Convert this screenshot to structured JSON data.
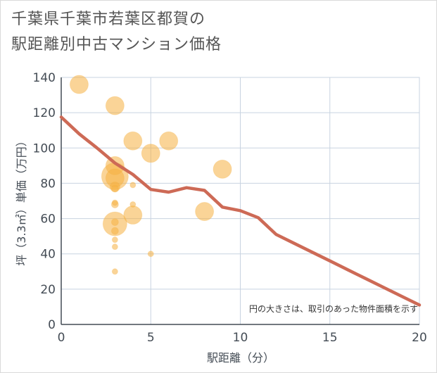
{
  "title_line1": "千葉県千葉市若葉区都賀の",
  "title_line2": "駅距離別中古マンション価格",
  "chart_data": {
    "type": "scatter",
    "xlabel": "駅距離（分）",
    "ylabel": "坪（3.3㎡）単価（万円）",
    "xlim": [
      0,
      20
    ],
    "ylim": [
      0,
      140
    ],
    "xticks": [
      0,
      5,
      10,
      15,
      20
    ],
    "yticks": [
      0,
      20,
      40,
      60,
      80,
      100,
      120,
      140
    ],
    "grid": true,
    "note": "円の大きさは、取引のあった物件面積を示す",
    "colors": {
      "bubble": "#f5b041",
      "line": "#cd6a56",
      "grid": "#c8d3e0",
      "axis": "#444c55"
    },
    "bubbles": [
      {
        "x": 1,
        "y": 136,
        "size": 13
      },
      {
        "x": 3,
        "y": 124,
        "size": 13
      },
      {
        "x": 3,
        "y": 90,
        "size": 13
      },
      {
        "x": 3,
        "y": 84,
        "size": 19
      },
      {
        "x": 3,
        "y": 83,
        "size": 13
      },
      {
        "x": 3,
        "y": 78,
        "size": 7
      },
      {
        "x": 3,
        "y": 77,
        "size": 5
      },
      {
        "x": 3,
        "y": 69,
        "size": 4
      },
      {
        "x": 3,
        "y": 68,
        "size": 5
      },
      {
        "x": 3,
        "y": 58,
        "size": 5
      },
      {
        "x": 3,
        "y": 57,
        "size": 17
      },
      {
        "x": 3,
        "y": 53,
        "size": 5
      },
      {
        "x": 3,
        "y": 48,
        "size": 4
      },
      {
        "x": 3,
        "y": 44,
        "size": 4
      },
      {
        "x": 3,
        "y": 30,
        "size": 4
      },
      {
        "x": 4,
        "y": 104,
        "size": 13
      },
      {
        "x": 4,
        "y": 79,
        "size": 4
      },
      {
        "x": 4,
        "y": 68,
        "size": 4
      },
      {
        "x": 4,
        "y": 62,
        "size": 13
      },
      {
        "x": 5,
        "y": 97,
        "size": 13
      },
      {
        "x": 5,
        "y": 40,
        "size": 4
      },
      {
        "x": 6,
        "y": 104,
        "size": 13
      },
      {
        "x": 8,
        "y": 64,
        "size": 13
      },
      {
        "x": 9,
        "y": 88,
        "size": 13
      }
    ],
    "trend": {
      "x": [
        0,
        1,
        2,
        3,
        4,
        5,
        6,
        7,
        8,
        9,
        10,
        11,
        12,
        13,
        14,
        15,
        16,
        17,
        18,
        19,
        20
      ],
      "y": [
        117.5,
        108,
        100,
        91.5,
        85,
        76.5,
        75,
        77.5,
        76,
        66.5,
        64.5,
        60.5,
        51,
        46,
        41,
        36,
        31,
        26,
        21,
        16,
        11
      ]
    }
  }
}
